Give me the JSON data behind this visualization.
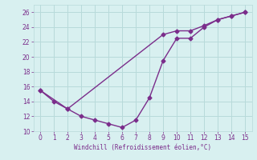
{
  "line1_x": [
    0,
    1,
    2,
    3,
    4,
    5,
    6,
    7,
    8,
    9,
    10,
    11,
    12,
    13,
    14,
    15
  ],
  "line1_y": [
    15.5,
    14.0,
    13.0,
    12.0,
    11.5,
    11.0,
    10.5,
    11.5,
    14.5,
    19.5,
    22.5,
    22.5,
    24.0,
    25.0,
    25.5,
    26.0
  ],
  "line2_x": [
    0,
    2,
    9,
    10,
    11,
    12,
    13,
    14,
    15
  ],
  "line2_y": [
    15.5,
    13.0,
    23.0,
    23.5,
    23.5,
    24.2,
    25.0,
    25.5,
    26.0
  ],
  "line_color": "#7b2d8b",
  "bg_color": "#d8f0f0",
  "grid_color": "#b8dada",
  "xlabel": "Windchill (Refroidissement éolien,°C)",
  "xlim": [
    -0.5,
    15.5
  ],
  "ylim": [
    10,
    27
  ],
  "yticks": [
    10,
    12,
    14,
    16,
    18,
    20,
    22,
    24,
    26
  ],
  "xticks": [
    0,
    1,
    2,
    3,
    4,
    5,
    6,
    7,
    8,
    9,
    10,
    11,
    12,
    13,
    14,
    15
  ],
  "xlabel_color": "#7b2d8b",
  "tick_color": "#7b2d8b",
  "marker": "D",
  "markersize": 2.5,
  "linewidth": 1.0
}
